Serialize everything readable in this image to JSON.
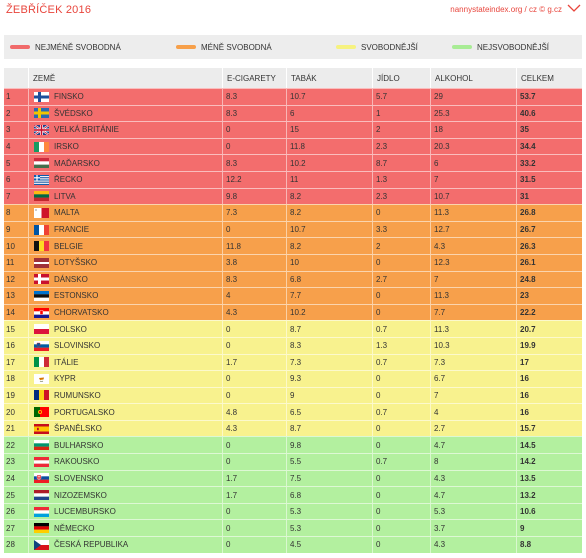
{
  "header": {
    "title": "ŽEBŘÍČEK 2016",
    "source": "nannystateindex.org / cz © g.cz"
  },
  "legend": [
    {
      "label": "NEJMÉNĚ SVOBODNÁ",
      "color": "#f06a6a"
    },
    {
      "label": "MÉNĚ SVOBODNÁ",
      "color": "#f7a04a"
    },
    {
      "label": "SVOBODNĚJŠÍ",
      "color": "#f6f280"
    },
    {
      "label": "NEJSVOBODNĚJŠÍ",
      "color": "#a8ec95"
    }
  ],
  "table": {
    "headers": {
      "country": "ZEMĚ",
      "ecig": "E-CIGARETY",
      "tabak": "TABÁK",
      "jidlo": "JÍDLO",
      "alk": "ALKOHOL",
      "celk": "CELKEM"
    },
    "tier_colors": [
      "#f36d6d",
      "#f7a04b",
      "#f8f28e",
      "#b3f09f"
    ],
    "rows": [
      {
        "rank": "1",
        "flag": "fi",
        "country": "FINSKO",
        "ecig": "8.3",
        "tabak": "10.7",
        "jidlo": "5.7",
        "alk": "29",
        "celk": "53.7",
        "tier": 0
      },
      {
        "rank": "2",
        "flag": "se",
        "country": "ŠVÉDSKO",
        "ecig": "8.3",
        "tabak": "6",
        "jidlo": "1",
        "alk": "25.3",
        "celk": "40.6",
        "tier": 0
      },
      {
        "rank": "3",
        "flag": "gb",
        "country": "VELKÁ BRITÁNIE",
        "ecig": "0",
        "tabak": "15",
        "jidlo": "2",
        "alk": "18",
        "celk": "35",
        "tier": 0
      },
      {
        "rank": "4",
        "flag": "ie",
        "country": "IRSKO",
        "ecig": "0",
        "tabak": "11.8",
        "jidlo": "2.3",
        "alk": "20.3",
        "celk": "34.4",
        "tier": 0
      },
      {
        "rank": "5",
        "flag": "hu",
        "country": "MAĎARSKO",
        "ecig": "8.3",
        "tabak": "10.2",
        "jidlo": "8.7",
        "alk": "6",
        "celk": "33.2",
        "tier": 0
      },
      {
        "rank": "6",
        "flag": "gr",
        "country": "ŘECKO",
        "ecig": "12.2",
        "tabak": "11",
        "jidlo": "1.3",
        "alk": "7",
        "celk": "31.5",
        "tier": 0
      },
      {
        "rank": "7",
        "flag": "lt",
        "country": "LITVA",
        "ecig": "9.8",
        "tabak": "8.2",
        "jidlo": "2.3",
        "alk": "10.7",
        "celk": "31",
        "tier": 0
      },
      {
        "rank": "8",
        "flag": "mt",
        "country": "MALTA",
        "ecig": "7.3",
        "tabak": "8.2",
        "jidlo": "0",
        "alk": "11.3",
        "celk": "26.8",
        "tier": 1
      },
      {
        "rank": "9",
        "flag": "fr",
        "country": "FRANCIE",
        "ecig": "0",
        "tabak": "10.7",
        "jidlo": "3.3",
        "alk": "12.7",
        "celk": "26.7",
        "tier": 1
      },
      {
        "rank": "10",
        "flag": "be",
        "country": "BELGIE",
        "ecig": "11.8",
        "tabak": "8.2",
        "jidlo": "2",
        "alk": "4.3",
        "celk": "26.3",
        "tier": 1
      },
      {
        "rank": "11",
        "flag": "lv",
        "country": "LOTYŠSKO",
        "ecig": "3.8",
        "tabak": "10",
        "jidlo": "0",
        "alk": "12.3",
        "celk": "26.1",
        "tier": 1
      },
      {
        "rank": "12",
        "flag": "dk",
        "country": "DÁNSKO",
        "ecig": "8.3",
        "tabak": "6.8",
        "jidlo": "2.7",
        "alk": "7",
        "celk": "24.8",
        "tier": 1
      },
      {
        "rank": "13",
        "flag": "ee",
        "country": "ESTONSKO",
        "ecig": "4",
        "tabak": "7.7",
        "jidlo": "0",
        "alk": "11.3",
        "celk": "23",
        "tier": 1
      },
      {
        "rank": "14",
        "flag": "hr",
        "country": "CHORVATSKO",
        "ecig": "4.3",
        "tabak": "10.2",
        "jidlo": "0",
        "alk": "7.7",
        "celk": "22.2",
        "tier": 1
      },
      {
        "rank": "15",
        "flag": "pl",
        "country": "POLSKO",
        "ecig": "0",
        "tabak": "8.7",
        "jidlo": "0.7",
        "alk": "11.3",
        "celk": "20.7",
        "tier": 2
      },
      {
        "rank": "16",
        "flag": "si",
        "country": "SLOVINSKO",
        "ecig": "0",
        "tabak": "8.3",
        "jidlo": "1.3",
        "alk": "10.3",
        "celk": "19.9",
        "tier": 2
      },
      {
        "rank": "17",
        "flag": "it",
        "country": "ITÁLIE",
        "ecig": "1.7",
        "tabak": "7.3",
        "jidlo": "0.7",
        "alk": "7.3",
        "celk": "17",
        "tier": 2
      },
      {
        "rank": "18",
        "flag": "cy",
        "country": "KYPR",
        "ecig": "0",
        "tabak": "9.3",
        "jidlo": "0",
        "alk": "6.7",
        "celk": "16",
        "tier": 2
      },
      {
        "rank": "19",
        "flag": "ro",
        "country": "RUMUNSKO",
        "ecig": "0",
        "tabak": "9",
        "jidlo": "0",
        "alk": "7",
        "celk": "16",
        "tier": 2
      },
      {
        "rank": "20",
        "flag": "pt",
        "country": "PORTUGALSKO",
        "ecig": "4.8",
        "tabak": "6.5",
        "jidlo": "0.7",
        "alk": "4",
        "celk": "16",
        "tier": 2
      },
      {
        "rank": "21",
        "flag": "es",
        "country": "ŠPANĚLSKO",
        "ecig": "4.3",
        "tabak": "8.7",
        "jidlo": "0",
        "alk": "2.7",
        "celk": "15.7",
        "tier": 2
      },
      {
        "rank": "22",
        "flag": "bg",
        "country": "BULHARSKO",
        "ecig": "0",
        "tabak": "9.8",
        "jidlo": "0",
        "alk": "4.7",
        "celk": "14.5",
        "tier": 3
      },
      {
        "rank": "23",
        "flag": "at",
        "country": "RAKOUSKO",
        "ecig": "0",
        "tabak": "5.5",
        "jidlo": "0.7",
        "alk": "8",
        "celk": "14.2",
        "tier": 3
      },
      {
        "rank": "24",
        "flag": "sk",
        "country": "SLOVENSKO",
        "ecig": "1.7",
        "tabak": "7.5",
        "jidlo": "0",
        "alk": "4.3",
        "celk": "13.5",
        "tier": 3
      },
      {
        "rank": "25",
        "flag": "nl",
        "country": "NIZOZEMSKO",
        "ecig": "1.7",
        "tabak": "6.8",
        "jidlo": "0",
        "alk": "4.7",
        "celk": "13.2",
        "tier": 3
      },
      {
        "rank": "26",
        "flag": "lu",
        "country": "LUCEMBURSKO",
        "ecig": "0",
        "tabak": "5.3",
        "jidlo": "0",
        "alk": "5.3",
        "celk": "10.6",
        "tier": 3
      },
      {
        "rank": "27",
        "flag": "de",
        "country": "NĚMECKO",
        "ecig": "0",
        "tabak": "5.3",
        "jidlo": "0",
        "alk": "3.7",
        "celk": "9",
        "tier": 3
      },
      {
        "rank": "28",
        "flag": "cz",
        "country": "ČESKÁ REPUBLIKA",
        "ecig": "0",
        "tabak": "4.5",
        "jidlo": "0",
        "alk": "4.3",
        "celk": "8.8",
        "tier": 3
      }
    ]
  }
}
